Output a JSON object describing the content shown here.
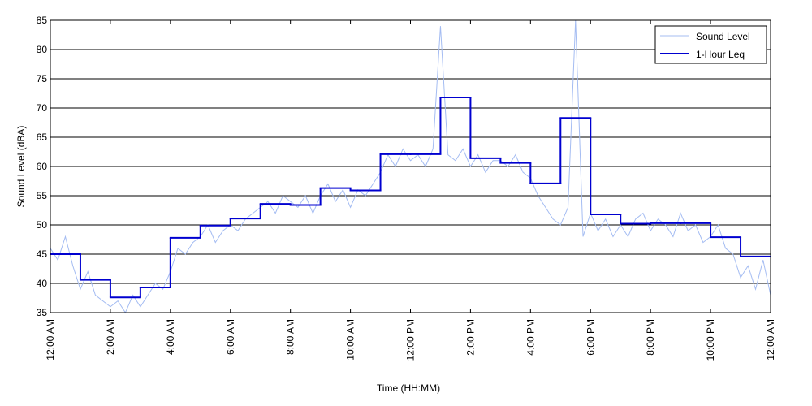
{
  "chart_data": {
    "type": "line",
    "xlabel": "Time (HH:MM)",
    "ylabel": "Sound Level (dBA)",
    "xlim": [
      0,
      24
    ],
    "ylim": [
      35,
      85
    ],
    "xticks": [
      {
        "value": 0,
        "label": "12:00 AM"
      },
      {
        "value": 2,
        "label": "2:00 AM"
      },
      {
        "value": 4,
        "label": "4:00 AM"
      },
      {
        "value": 6,
        "label": "6:00 AM"
      },
      {
        "value": 8,
        "label": "8:00 AM"
      },
      {
        "value": 10,
        "label": "10:00 AM"
      },
      {
        "value": 12,
        "label": "12:00 PM"
      },
      {
        "value": 14,
        "label": "2:00 PM"
      },
      {
        "value": 16,
        "label": "4:00 PM"
      },
      {
        "value": 18,
        "label": "6:00 PM"
      },
      {
        "value": 20,
        "label": "8:00 PM"
      },
      {
        "value": 22,
        "label": "10:00 PM"
      },
      {
        "value": 24,
        "label": "12:00 AM"
      }
    ],
    "yticks": [
      35,
      40,
      45,
      50,
      55,
      60,
      65,
      70,
      75,
      80,
      85
    ],
    "grid": true,
    "legend": "upper right",
    "series": [
      {
        "name": "Sound Level",
        "color": "#a4bcf2",
        "x": [
          0,
          0.25,
          0.5,
          0.75,
          1,
          1.25,
          1.5,
          1.75,
          2,
          2.25,
          2.5,
          2.75,
          3,
          3.25,
          3.5,
          3.75,
          4,
          4.25,
          4.5,
          4.75,
          5,
          5.25,
          5.5,
          5.75,
          6,
          6.25,
          6.5,
          6.75,
          7,
          7.25,
          7.5,
          7.75,
          8,
          8.25,
          8.5,
          8.75,
          9,
          9.25,
          9.5,
          9.75,
          10,
          10.25,
          10.5,
          10.75,
          11,
          11.25,
          11.5,
          11.75,
          12,
          12.25,
          12.5,
          12.75,
          13,
          13.25,
          13.5,
          13.75,
          14,
          14.25,
          14.5,
          14.75,
          15,
          15.25,
          15.5,
          15.75,
          16,
          16.25,
          16.5,
          16.75,
          17,
          17.25,
          17.5,
          17.75,
          18,
          18.25,
          18.5,
          18.75,
          19,
          19.25,
          19.5,
          19.75,
          20,
          20.25,
          20.5,
          20.75,
          21,
          21.25,
          21.5,
          21.75,
          22,
          22.25,
          22.5,
          22.75,
          23,
          23.25,
          23.5,
          23.75,
          24
        ],
        "values": [
          46,
          44,
          48,
          43,
          39,
          42,
          38,
          37,
          36,
          37,
          35,
          38,
          36,
          38,
          40,
          39,
          42,
          46,
          45,
          47,
          48,
          50,
          47,
          49,
          50,
          49,
          51,
          52,
          53,
          54,
          52,
          55,
          54,
          53,
          55,
          52,
          55,
          57,
          54,
          56,
          53,
          56,
          55,
          57,
          59,
          62,
          60,
          63,
          61,
          62,
          60,
          63,
          84,
          62,
          61,
          63,
          60,
          62,
          59,
          61,
          61,
          60,
          62,
          59,
          58,
          55,
          53,
          51,
          50,
          53,
          85,
          48,
          52,
          49,
          51,
          48,
          50,
          48,
          51,
          52,
          49,
          51,
          50,
          48,
          52,
          49,
          50,
          47,
          48,
          50,
          46,
          45,
          41,
          43,
          39,
          44,
          38
        ]
      },
      {
        "name": "1-Hour Leq",
        "color": "#0000d0",
        "drawstyle": "steps-post",
        "x": [
          0,
          1,
          2,
          3,
          4,
          5,
          6,
          7,
          8,
          9,
          10,
          11,
          12,
          13,
          14,
          15,
          16,
          17,
          18,
          19,
          20,
          21,
          22,
          23
        ],
        "values": [
          45.0,
          40.6,
          37.6,
          39.3,
          47.8,
          49.9,
          51.1,
          53.6,
          53.4,
          56.3,
          55.9,
          62.1,
          62.1,
          71.8,
          61.4,
          60.6,
          57.1,
          68.3,
          51.8,
          50.2,
          50.3,
          50.3,
          47.9,
          44.6
        ]
      }
    ]
  }
}
